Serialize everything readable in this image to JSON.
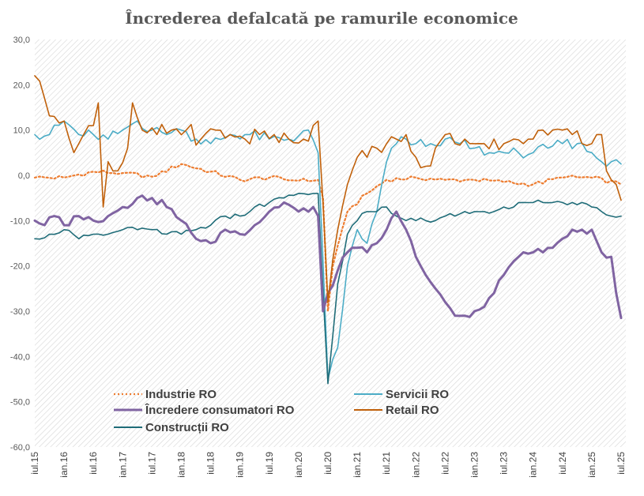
{
  "chart_data": {
    "type": "line",
    "title": "Încrederea defalcată pe ramurile economice",
    "xlabel": "",
    "ylabel": "",
    "ylim": [
      -60,
      30
    ],
    "yticks": [
      "30,0",
      "20,0",
      "10,0",
      "0,0",
      "-10,0",
      "-20,0",
      "-30,0",
      "-40,0",
      "-50,0",
      "-60,0"
    ],
    "xticks": [
      "iul.15",
      "ian.16",
      "iul.16",
      "ian.17",
      "iul.17",
      "ian.18",
      "iul.18",
      "ian.19",
      "iul.19",
      "ian.20",
      "iul.20",
      "ian.21",
      "iul.21",
      "ian.22",
      "iul.22",
      "ian.23",
      "iul.23",
      "ian.24",
      "iul.24",
      "ian.25",
      "iul.25"
    ],
    "x_start": "2015-07",
    "x_end": "2025-07",
    "grid": "hatched background",
    "legend_position": "bottom-left, inside plot",
    "series": [
      {
        "name": "Industrie RO",
        "color": "#ED7D31",
        "style": "dotted",
        "anchors": [
          [
            0,
            -0.5
          ],
          [
            6,
            -0.5
          ],
          [
            12,
            0.8
          ],
          [
            18,
            0.5
          ],
          [
            24,
            -0.3
          ],
          [
            30,
            2.5
          ],
          [
            36,
            0.8
          ],
          [
            42,
            -1.0
          ],
          [
            48,
            -0.5
          ],
          [
            54,
            -1.2
          ],
          [
            58,
            -1.0
          ],
          [
            59,
            -5
          ],
          [
            60,
            -30
          ],
          [
            61,
            -20
          ],
          [
            64,
            -8
          ],
          [
            68,
            -4
          ],
          [
            72,
            -1
          ],
          [
            78,
            -0.5
          ],
          [
            84,
            -1.0
          ],
          [
            90,
            -1.0
          ],
          [
            96,
            -1.5
          ],
          [
            102,
            -2.0
          ],
          [
            108,
            -0.5
          ],
          [
            114,
            -0.5
          ],
          [
            120,
            -2.0
          ]
        ]
      },
      {
        "name": "Servicii RO",
        "color": "#4BACC6",
        "style": "solid",
        "anchors": [
          [
            0,
            9
          ],
          [
            3,
            9
          ],
          [
            6,
            12
          ],
          [
            9,
            9
          ],
          [
            12,
            9
          ],
          [
            15,
            8
          ],
          [
            18,
            10
          ],
          [
            21,
            12
          ],
          [
            24,
            10
          ],
          [
            27,
            9
          ],
          [
            30,
            10
          ],
          [
            33,
            8
          ],
          [
            36,
            7
          ],
          [
            40,
            9
          ],
          [
            44,
            9
          ],
          [
            48,
            8
          ],
          [
            52,
            8
          ],
          [
            56,
            10
          ],
          [
            58,
            5
          ],
          [
            60,
            -45
          ],
          [
            62,
            -38
          ],
          [
            64,
            -20
          ],
          [
            66,
            -12
          ],
          [
            68,
            -15
          ],
          [
            70,
            -8
          ],
          [
            72,
            3
          ],
          [
            74,
            7
          ],
          [
            76,
            8
          ],
          [
            78,
            7
          ],
          [
            81,
            7
          ],
          [
            84,
            8
          ],
          [
            87,
            7
          ],
          [
            90,
            6
          ],
          [
            93,
            5
          ],
          [
            96,
            5
          ],
          [
            99,
            5
          ],
          [
            102,
            5
          ],
          [
            105,
            6
          ],
          [
            108,
            7
          ],
          [
            111,
            7
          ],
          [
            114,
            5
          ],
          [
            116,
            3
          ],
          [
            118,
            3
          ],
          [
            120,
            2.5
          ]
        ]
      },
      {
        "name": "Încredere consumatori RO",
        "color": "#8064A2",
        "style": "solid",
        "width": 3,
        "anchors": [
          [
            0,
            -10
          ],
          [
            2,
            -11
          ],
          [
            4,
            -9
          ],
          [
            6,
            -11
          ],
          [
            9,
            -9
          ],
          [
            12,
            -10
          ],
          [
            15,
            -9
          ],
          [
            18,
            -7
          ],
          [
            21,
            -5
          ],
          [
            24,
            -5
          ],
          [
            27,
            -7
          ],
          [
            30,
            -10
          ],
          [
            33,
            -14
          ],
          [
            36,
            -15
          ],
          [
            39,
            -12
          ],
          [
            42,
            -13
          ],
          [
            45,
            -11
          ],
          [
            48,
            -8
          ],
          [
            51,
            -6
          ],
          [
            54,
            -8
          ],
          [
            57,
            -7
          ],
          [
            58,
            -9
          ],
          [
            59,
            -30
          ],
          [
            60,
            -26
          ],
          [
            62,
            -21
          ],
          [
            64,
            -17
          ],
          [
            66,
            -16
          ],
          [
            68,
            -17
          ],
          [
            70,
            -15
          ],
          [
            72,
            -12
          ],
          [
            74,
            -8
          ],
          [
            76,
            -12
          ],
          [
            78,
            -18
          ],
          [
            80,
            -22
          ],
          [
            82,
            -25
          ],
          [
            84,
            -28
          ],
          [
            86,
            -31
          ],
          [
            88,
            -31
          ],
          [
            90,
            -30
          ],
          [
            92,
            -29
          ],
          [
            94,
            -26
          ],
          [
            96,
            -22
          ],
          [
            98,
            -19
          ],
          [
            100,
            -17
          ],
          [
            102,
            -17
          ],
          [
            104,
            -17
          ],
          [
            106,
            -16
          ],
          [
            108,
            -14
          ],
          [
            110,
            -12
          ],
          [
            112,
            -12
          ],
          [
            114,
            -12
          ],
          [
            116,
            -17
          ],
          [
            118,
            -18
          ],
          [
            119,
            -26
          ],
          [
            120,
            -31.5
          ]
        ]
      },
      {
        "name": "Retail RO",
        "color": "#C0600A",
        "style": "solid",
        "anchors": [
          [
            0,
            22
          ],
          [
            2,
            17
          ],
          [
            4,
            13
          ],
          [
            6,
            12
          ],
          [
            8,
            5
          ],
          [
            10,
            9
          ],
          [
            12,
            11
          ],
          [
            13,
            16
          ],
          [
            14,
            -7
          ],
          [
            15,
            3
          ],
          [
            17,
            1
          ],
          [
            19,
            6
          ],
          [
            20,
            16
          ],
          [
            22,
            10
          ],
          [
            25,
            9
          ],
          [
            28,
            10
          ],
          [
            31,
            10
          ],
          [
            34,
            8
          ],
          [
            37,
            10
          ],
          [
            40,
            9
          ],
          [
            43,
            8
          ],
          [
            46,
            9
          ],
          [
            49,
            9
          ],
          [
            52,
            8
          ],
          [
            55,
            8
          ],
          [
            57,
            11
          ],
          [
            58,
            12
          ],
          [
            60,
            -28
          ],
          [
            62,
            -12
          ],
          [
            64,
            -2
          ],
          [
            66,
            4
          ],
          [
            68,
            4
          ],
          [
            70,
            6
          ],
          [
            72,
            7
          ],
          [
            74,
            8
          ],
          [
            76,
            9
          ],
          [
            78,
            4
          ],
          [
            80,
            2
          ],
          [
            82,
            6
          ],
          [
            84,
            9
          ],
          [
            86,
            7
          ],
          [
            88,
            8
          ],
          [
            90,
            7
          ],
          [
            92,
            7
          ],
          [
            94,
            8
          ],
          [
            96,
            7
          ],
          [
            98,
            8
          ],
          [
            100,
            7
          ],
          [
            102,
            8
          ],
          [
            104,
            10
          ],
          [
            106,
            10
          ],
          [
            108,
            10
          ],
          [
            110,
            9
          ],
          [
            112,
            7
          ],
          [
            114,
            7
          ],
          [
            115,
            9
          ],
          [
            116,
            9
          ],
          [
            117,
            1
          ],
          [
            118,
            -1
          ],
          [
            119,
            -2
          ],
          [
            120,
            -5.5
          ]
        ]
      },
      {
        "name": "Construcții RO",
        "color": "#1F6C78",
        "style": "solid",
        "anchors": [
          [
            0,
            -14
          ],
          [
            3,
            -13
          ],
          [
            6,
            -12
          ],
          [
            9,
            -14
          ],
          [
            12,
            -13
          ],
          [
            15,
            -13
          ],
          [
            18,
            -12
          ],
          [
            21,
            -12
          ],
          [
            24,
            -12
          ],
          [
            27,
            -13
          ],
          [
            30,
            -13
          ],
          [
            33,
            -12
          ],
          [
            36,
            -11
          ],
          [
            39,
            -9
          ],
          [
            42,
            -9
          ],
          [
            45,
            -7
          ],
          [
            48,
            -6
          ],
          [
            51,
            -5
          ],
          [
            54,
            -4
          ],
          [
            57,
            -4
          ],
          [
            58,
            -4
          ],
          [
            60,
            -46
          ],
          [
            62,
            -24
          ],
          [
            64,
            -13
          ],
          [
            66,
            -10
          ],
          [
            68,
            -8
          ],
          [
            70,
            -8
          ],
          [
            72,
            -7
          ],
          [
            74,
            -9
          ],
          [
            76,
            -10
          ],
          [
            78,
            -10
          ],
          [
            80,
            -10
          ],
          [
            82,
            -10
          ],
          [
            84,
            -9
          ],
          [
            86,
            -9
          ],
          [
            88,
            -8
          ],
          [
            90,
            -8
          ],
          [
            92,
            -8
          ],
          [
            94,
            -8
          ],
          [
            96,
            -7
          ],
          [
            98,
            -7
          ],
          [
            100,
            -6
          ],
          [
            102,
            -6
          ],
          [
            104,
            -6
          ],
          [
            106,
            -6
          ],
          [
            108,
            -6
          ],
          [
            110,
            -6
          ],
          [
            112,
            -6
          ],
          [
            114,
            -7
          ],
          [
            116,
            -8
          ],
          [
            118,
            -9
          ],
          [
            120,
            -9
          ]
        ]
      }
    ]
  }
}
